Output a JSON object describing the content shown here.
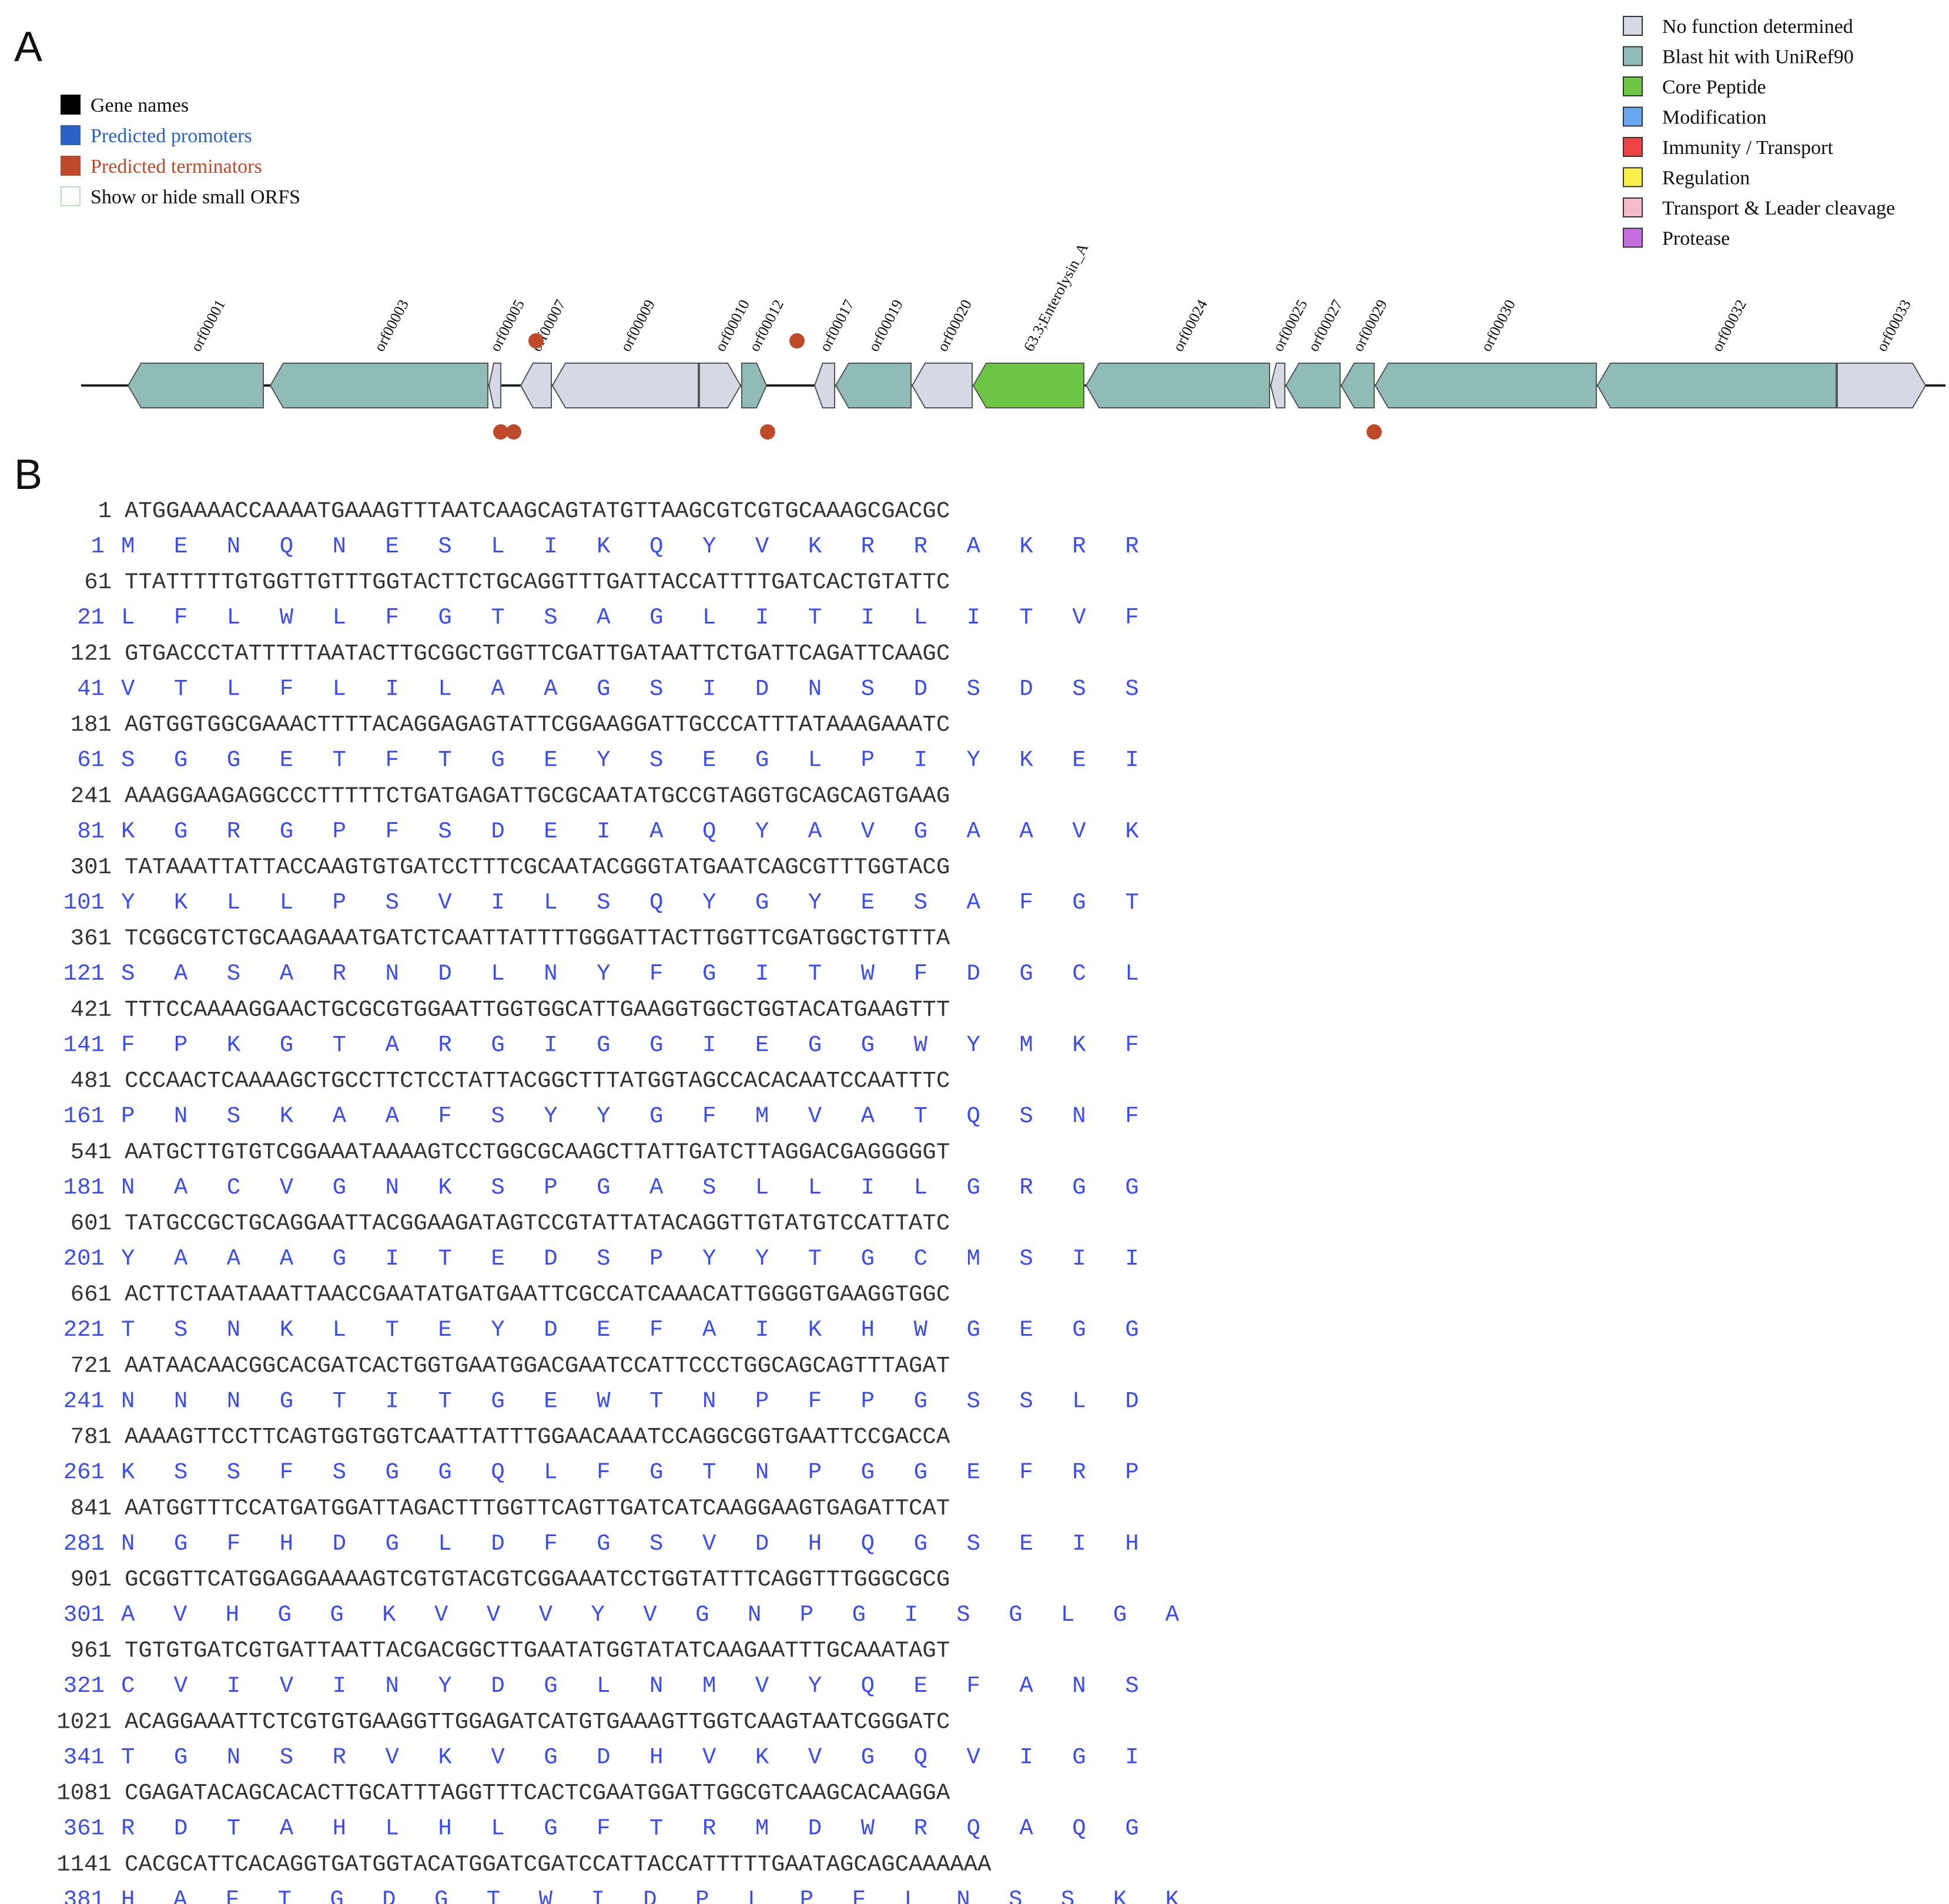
{
  "panels": {
    "a": "A",
    "b": "B"
  },
  "legend_left": [
    {
      "label": "Gene names",
      "color": "#000000"
    },
    {
      "label": "Predicted promoters",
      "color": "#2962c4"
    },
    {
      "label": "Predicted terminators",
      "color": "#bf4a2a"
    },
    {
      "label": "Show or hide small ORFS",
      "color": "#ffffff"
    }
  ],
  "legend_right": [
    {
      "label": "No function determined",
      "color": "#d5d9e4"
    },
    {
      "label": "Blast hit with UniRef90",
      "color": "#8fbcb6"
    },
    {
      "label": "Core Peptide",
      "color": "#6cc644"
    },
    {
      "label": "Modification",
      "color": "#6aa7f2"
    },
    {
      "label": "Immunity / Transport",
      "color": "#f04343"
    },
    {
      "label": "Regulation",
      "color": "#f7f04a"
    },
    {
      "label": "Transport & Leader cleavage",
      "color": "#f6bccb"
    },
    {
      "label": "Protease",
      "color": "#c86ee3"
    }
  ],
  "genes": [
    {
      "name": "orf00001",
      "start": 218,
      "end": 448,
      "strand": "-",
      "type": "blast"
    },
    {
      "name": "orf00003",
      "start": 460,
      "end": 830,
      "strand": "-",
      "type": "blast"
    },
    {
      "name": "orf00005",
      "start": 832,
      "end": 852,
      "strand": "-",
      "type": "nofunc"
    },
    {
      "name": "orf00007",
      "start": 886,
      "end": 938,
      "strand": "-",
      "type": "nofunc"
    },
    {
      "name": "orf00009",
      "start": 940,
      "end": 1188,
      "strand": "-",
      "type": "nofunc"
    },
    {
      "name": "orf00010",
      "start": 1190,
      "end": 1260,
      "strand": "+",
      "type": "nofunc"
    },
    {
      "name": "orf00012",
      "start": 1262,
      "end": 1304,
      "strand": "+",
      "type": "blast"
    },
    {
      "name": "orf00017",
      "start": 1386,
      "end": 1420,
      "strand": "-",
      "type": "nofunc"
    },
    {
      "name": "orf00019",
      "start": 1422,
      "end": 1550,
      "strand": "-",
      "type": "blast"
    },
    {
      "name": "orf00020",
      "start": 1552,
      "end": 1654,
      "strand": "-",
      "type": "nofunc"
    },
    {
      "name": "63.3;Enterolysin_A",
      "start": 1656,
      "end": 1844,
      "strand": "-",
      "type": "core"
    },
    {
      "name": "orf00024",
      "start": 1848,
      "end": 2160,
      "strand": "-",
      "type": "blast"
    },
    {
      "name": "orf00025",
      "start": 2162,
      "end": 2186,
      "strand": "-",
      "type": "nofunc"
    },
    {
      "name": "orf00027",
      "start": 2188,
      "end": 2280,
      "strand": "-",
      "type": "blast"
    },
    {
      "name": "orf00029",
      "start": 2282,
      "end": 2338,
      "strand": "-",
      "type": "blast"
    },
    {
      "name": "orf00030",
      "start": 2340,
      "end": 2716,
      "strand": "-",
      "type": "blast"
    },
    {
      "name": "orf00032",
      "start": 2718,
      "end": 3124,
      "strand": "-",
      "type": "blast"
    },
    {
      "name": "orf00033",
      "start": 3126,
      "end": 3276,
      "strand": "+",
      "type": "nofunc"
    }
  ],
  "terminators_top": [
    {
      "pos": 912
    },
    {
      "pos": 1356
    }
  ],
  "terminators_bottom": [
    {
      "pos": 852
    },
    {
      "pos": 874
    },
    {
      "pos": 1306
    },
    {
      "pos": 2338
    }
  ],
  "sequence": [
    {
      "n": "1",
      "nt": "ATGGAAAACCAAAATGAAAGTTTAATCAAGCAGTATGTTAAGCGTCGTGCAAAGCGACGC",
      "a": "1",
      "aa": "M E N Q N E S L I K Q Y V K R R A K R R"
    },
    {
      "n": "61",
      "nt": "TTATTTTTGTGGTTGTTTGGTACTTCTGCAGGTTTGATTACCATTTTGATCACTGTATTC",
      "a": "21",
      "aa": "L F L W L F G T S A G L I T I L I T V F"
    },
    {
      "n": "121",
      "nt": "GTGACCCTATTTTTAATACTTGCGGCTGGTTCGATTGATAATTCTGATTCAGATTCAAGC",
      "a": "41",
      "aa": "V T L F L I L A A G S I D N S D S D S S"
    },
    {
      "n": "181",
      "nt": "AGTGGTGGCGAAACTTTTACAGGAGAGTATTCGGAAGGATTGCCCATTTATAAAGAAATC",
      "a": "61",
      "aa": "S G G E T F T G E Y S E G L P I Y K E I"
    },
    {
      "n": "241",
      "nt": "AAAGGAAGAGGCCCTTTTTCTGATGAGATTGCGCAATATGCCGTAGGTGCAGCAGTGAAG",
      "a": "81",
      "aa": "K G R G P F S D E I A Q Y A V G A A V K"
    },
    {
      "n": "301",
      "nt": "TATAAATTATTACCAAGTGTGATCCTTTCGCAATACGGGTATGAATCAGCGTTTGGTACG",
      "a": "101",
      "aa": "Y K L L P S V I L S Q Y G Y E S A F G T"
    },
    {
      "n": "361",
      "nt": "TCGGCGTCTGCAAGAAATGATCTCAATTATTTTGGGATTACTTGGTTCGATGGCTGTTTA",
      "a": "121",
      "aa": "S A S A R N D L N Y F G I T W F D G C L"
    },
    {
      "n": "421",
      "nt": "TTTCCAAAAGGAACTGCGCGTGGAATTGGTGGCATTGAAGGTGGCTGGTACATGAAGTTT",
      "a": "141",
      "aa": "F P K G T A R G I G G I E G G W Y M K F"
    },
    {
      "n": "481",
      "nt": "CCCAACTCAAAAGCTGCCTTCTCCTATTACGGCTTTATGGTAGCCACACAATCCAATTTC",
      "a": "161",
      "aa": "P N S K A A F S Y Y G F M V A T Q S N F"
    },
    {
      "n": "541",
      "nt": "AATGCTTGTGTCGGAAATAAAAGTCCTGGCGCAAGCTTATTGATCTTAGGACGAGGGGGT",
      "a": "181",
      "aa": "N A C V G N K S P G A S L L I L G R G G"
    },
    {
      "n": "601",
      "nt": "TATGCCGCTGCAGGAATTACGGAAGATAGTCCGTATTATACAGGTTGTATGTCCATTATC",
      "a": "201",
      "aa": "Y A A A G I T E D S P Y Y T G C M S I I"
    },
    {
      "n": "661",
      "nt": "ACTTCTAATAAATTAACCGAATATGATGAATTCGCCATCAAACATTGGGGTGAAGGTGGC",
      "a": "221",
      "aa": "T S N K L T E Y D E F A I K H W G E G G"
    },
    {
      "n": "721",
      "nt": "AATAACAACGGCACGATCACTGGTGAATGGACGAATCCATTCCCTGGCAGCAGTTTAGAT",
      "a": "241",
      "aa": "N N N G T I T G E W T N P F P G S S L D"
    },
    {
      "n": "781",
      "nt": "AAAAGTTCCTTCAGTGGTGGTCAATTATTTGGAACAAATCCAGGCGGTGAATTCCGACCA",
      "a": "261",
      "aa": "K S S F S G G Q L F G T N P G G E F R P"
    },
    {
      "n": "841",
      "nt": "AATGGTTTCCATGATGGATTAGACTTTGGTTCAGTTGATCATCAAGGAAGTGAGATTCAT",
      "a": "281",
      "aa": "N G F H D G L D F G S V D H Q G S E I H"
    },
    {
      "n": "901",
      "nt": "GCGGTTCATGGAGGAAAAGTCGTGTACGTCGGAAATCCTGGTATTTCAGGTTTGGGCGCG",
      "a": "301",
      "aa": "A V H G G K V V V Y V G N P G I S G L G A"
    },
    {
      "n": "961",
      "nt": "TGTGTGATCGTGATTAATTACGACGGCTTGAATATGGTATATCAAGAATTTGCAAATAGT",
      "a": "321",
      "aa": "C V I V I N Y D G L N M V Y Q E F A N S"
    },
    {
      "n": "1021",
      "nt": "ACAGGAAATTCTCGTGTGAAGGTTGGAGATCATGTGAAAGTTGGTCAAGTAATCGGGATC",
      "a": "341",
      "aa": "T G N S R V K V G D H V K V G Q V I G I"
    },
    {
      "n": "1081",
      "nt": "CGAGATACAGCACACTTGCATTTAGGTTTCACTCGAATGGATTGGCGTCAAGCACAAGGA",
      "a": "361",
      "aa": "R D T A H L H L G F T R M D W R Q A Q G"
    },
    {
      "n": "1141",
      "nt": "CACGCATTCACAGGTGATGGTACATGGATCGATCCATTACCATTTTTGAATAGCAGCAAAAAA",
      "a": "381",
      "aa": "H A F T G D G T W I D P L P F L N S S K K"
    }
  ]
}
